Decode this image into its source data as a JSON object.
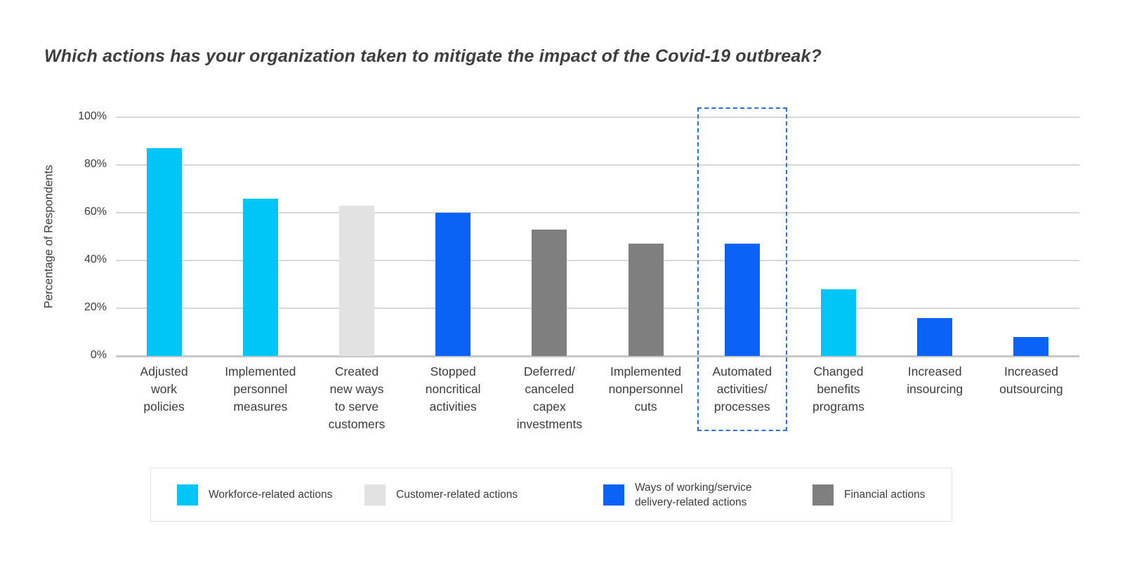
{
  "title": "Which actions has your organization taken to mitigate the impact of the Covid-19 outbreak?",
  "colors": {
    "workforce": "#00c6f8",
    "customer": "#e2e2e3",
    "ways": "#0a63f6",
    "financial": "#7f7f7f",
    "highlight_border": "#2a72d9",
    "gridline": "#d8d8d8",
    "text": "#3c3c3c"
  },
  "chart_data": {
    "type": "bar",
    "title": "Which actions has your organization taken to mitigate the impact of the Covid-19 outbreak?",
    "xlabel": "",
    "ylabel": "Percentage of Respondents",
    "ylim": [
      0,
      100
    ],
    "yticks": [
      0,
      20,
      40,
      60,
      80,
      100
    ],
    "ytick_labels": [
      "0%",
      "20%",
      "40%",
      "60%",
      "80%",
      "100%"
    ],
    "grid": true,
    "legend_position": "bottom",
    "categories": [
      "Adjusted work policies",
      "Implemented personnel measures",
      "Created new ways to serve customers",
      "Stopped noncritical activities",
      "Deferred/canceled capex investments",
      "Implemented nonpersonnel cuts",
      "Automated activities/processes",
      "Changed benefits programs",
      "Increased insourcing",
      "Increased outsourcing"
    ],
    "label_lines": [
      [
        "Adjusted",
        "work",
        "policies"
      ],
      [
        "Implemented",
        "personnel",
        "measures"
      ],
      [
        "Created",
        "new ways",
        "to serve",
        "customers"
      ],
      [
        "Stopped",
        "noncritical",
        "activities"
      ],
      [
        "Deferred/",
        "canceled",
        "capex",
        "investments"
      ],
      [
        "Implemented",
        "nonpersonnel",
        "cuts"
      ],
      [
        "Automated",
        "activities/",
        "processes"
      ],
      [
        "Changed",
        "benefits",
        "programs"
      ],
      [
        "Increased",
        "insourcing"
      ],
      [
        "Increased",
        "outsourcing"
      ]
    ],
    "values": [
      87,
      66,
      63,
      60,
      53,
      47,
      47,
      28,
      16,
      8
    ],
    "series_key": [
      "workforce",
      "workforce",
      "customer",
      "ways",
      "financial",
      "financial",
      "ways",
      "workforce",
      "ways",
      "ways"
    ],
    "highlight_index": 6
  },
  "legend": {
    "items": [
      {
        "key": "workforce",
        "label": "Workforce-related actions",
        "color": "#00c6f8"
      },
      {
        "key": "customer",
        "label": "Customer-related actions",
        "color": "#e2e2e3"
      },
      {
        "key": "ways",
        "label": "Ways of working/service delivery-related actions",
        "label_lines": [
          "Ways of working/service",
          "delivery-related actions"
        ],
        "color": "#0a63f6"
      },
      {
        "key": "financial",
        "label": "Financial actions",
        "color": "#7f7f7f"
      }
    ]
  }
}
